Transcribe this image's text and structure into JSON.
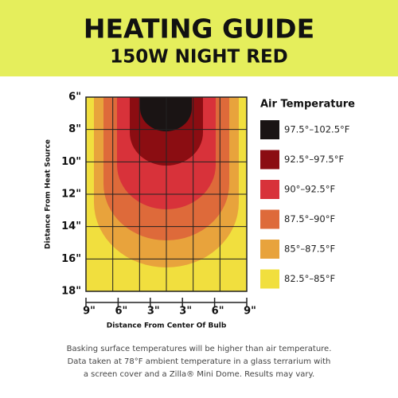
{
  "header": {
    "title": "HEATING GUIDE",
    "subtitle": "150W NIGHT RED"
  },
  "axes": {
    "y_label": "Distance From Heat Source",
    "x_label": "Distance From Center Of Bulb",
    "y_ticks": [
      "6\"",
      "8\"",
      "10\"",
      "12\"",
      "14\"",
      "16\"",
      "18\""
    ],
    "x_ticks": [
      "9\"",
      "6\"",
      "3\"",
      "3\"",
      "6\"",
      "9\""
    ]
  },
  "legend": {
    "title": "Air Temperature",
    "items": [
      {
        "label": "97.5°–102.5°F",
        "color": "#1a1414"
      },
      {
        "label": "92.5°–97.5°F",
        "color": "#8b0d12"
      },
      {
        "label": "90°–92.5°F",
        "color": "#d8323a"
      },
      {
        "label": "87.5°–90°F",
        "color": "#de6a3a"
      },
      {
        "label": "85°–87.5°F",
        "color": "#e8a33c"
      },
      {
        "label": "82.5°–85°F",
        "color": "#f1df3e"
      }
    ]
  },
  "footnote": [
    "Basking surface temperatures will be higher than air temperature.",
    "Data taken at 78°F ambient temperature in a glass terrarium with",
    "a screen cover and a Zilla® Mini Dome. Results may vary."
  ]
}
